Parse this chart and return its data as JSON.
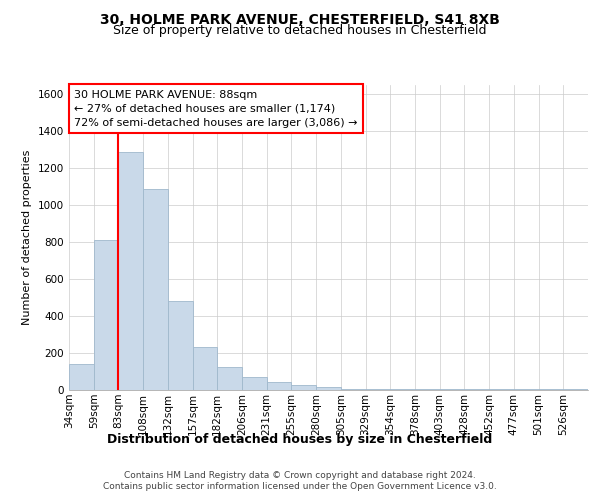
{
  "title_line1": "30, HOLME PARK AVENUE, CHESTERFIELD, S41 8XB",
  "title_line2": "Size of property relative to detached houses in Chesterfield",
  "xlabel": "Distribution of detached houses by size in Chesterfield",
  "ylabel": "Number of detached properties",
  "footer_line1": "Contains HM Land Registry data © Crown copyright and database right 2024.",
  "footer_line2": "Contains public sector information licensed under the Open Government Licence v3.0.",
  "bin_labels": [
    "34sqm",
    "59sqm",
    "83sqm",
    "108sqm",
    "132sqm",
    "157sqm",
    "182sqm",
    "206sqm",
    "231sqm",
    "255sqm",
    "280sqm",
    "305sqm",
    "329sqm",
    "354sqm",
    "378sqm",
    "403sqm",
    "428sqm",
    "452sqm",
    "477sqm",
    "501sqm",
    "526sqm"
  ],
  "bar_heights": [
    140,
    810,
    1290,
    1090,
    480,
    235,
    125,
    70,
    45,
    25,
    15,
    5,
    5,
    5,
    5,
    5,
    5,
    5,
    5,
    5,
    5
  ],
  "bar_color": "#c9d9e9",
  "bar_edge_color": "#a0b8cc",
  "annotation_line1": "30 HOLME PARK AVENUE: 88sqm",
  "annotation_line2": "← 27% of detached houses are smaller (1,174)",
  "annotation_line3": "72% of semi-detached houses are larger (3,086) →",
  "vline_bin": 2,
  "ylim": [
    0,
    1650
  ],
  "yticks": [
    0,
    200,
    400,
    600,
    800,
    1000,
    1200,
    1400,
    1600
  ],
  "grid_color": "#cccccc",
  "title1_fontsize": 10,
  "title2_fontsize": 9,
  "ylabel_fontsize": 8,
  "xlabel_fontsize": 9,
  "tick_fontsize": 7.5,
  "footer_fontsize": 6.5
}
